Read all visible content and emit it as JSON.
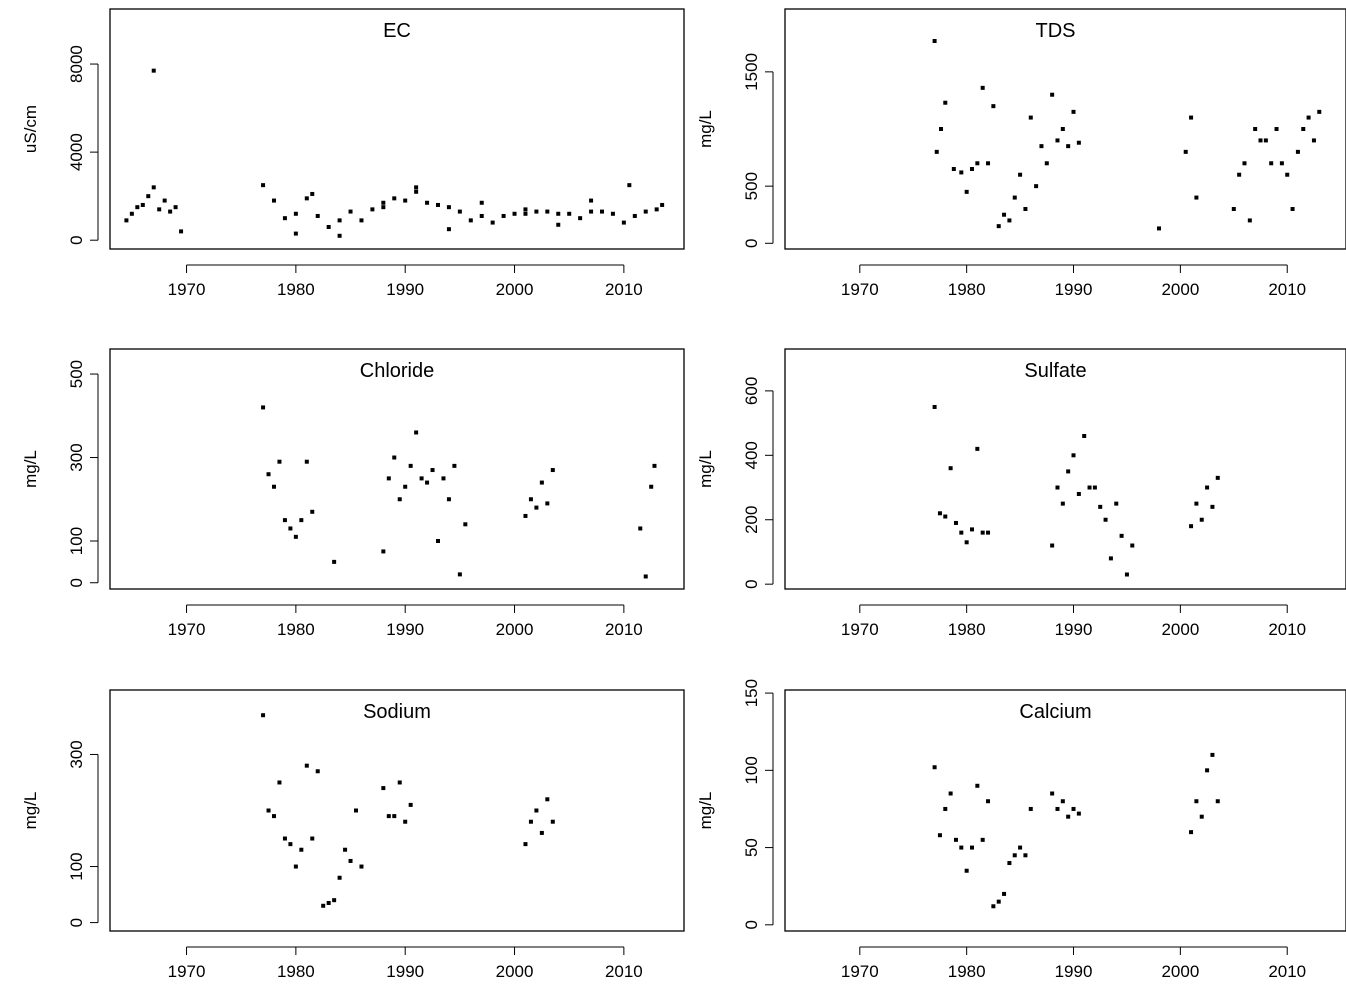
{
  "chart_data": [
    {
      "type": "scatter",
      "title": "EC",
      "ylabel": "uS/cm",
      "xlim": [
        1963,
        2015.5
      ],
      "ylim": [
        -400,
        10500
      ],
      "xticks": [
        "1970",
        "1980",
        "1990",
        "2000",
        "2010"
      ],
      "yticks": [
        "0",
        "4000",
        "8000"
      ],
      "x": [
        1964.5,
        1965,
        1965.5,
        1966,
        1966.5,
        1967,
        1967.5,
        1968,
        1968.5,
        1969,
        1969.5,
        1977,
        1978,
        1979,
        1980,
        1981,
        1982,
        1983,
        1984,
        1985,
        1986,
        1987,
        1988,
        1989,
        1990,
        1991,
        1992,
        1993,
        1994,
        1995,
        1996,
        1997,
        1998,
        1999,
        2000,
        2001,
        2002,
        2003,
        2004,
        2005,
        2006,
        2007,
        2008,
        2009,
        2010,
        2011,
        2012,
        2013,
        1967,
        1980,
        1981.5,
        1984,
        1988,
        1991,
        1994,
        1997,
        2001,
        2004,
        2007,
        2010.5,
        2013.5
      ],
      "y": [
        900,
        1200,
        1500,
        1600,
        2000,
        2400,
        1400,
        1800,
        1300,
        1500,
        400,
        2500,
        1800,
        1000,
        1200,
        1900,
        1100,
        600,
        900,
        1300,
        900,
        1400,
        1700,
        1900,
        1800,
        2200,
        1700,
        1600,
        1500,
        1300,
        900,
        1100,
        800,
        1100,
        1200,
        1200,
        1300,
        1300,
        1200,
        1200,
        1000,
        1300,
        1300,
        1200,
        800,
        1100,
        1300,
        1400,
        7700,
        300,
        2100,
        200,
        1500,
        2400,
        500,
        1700,
        1400,
        700,
        1800,
        2500,
        1600
      ]
    },
    {
      "type": "scatter",
      "title": "TDS",
      "ylabel": "mg/L",
      "xlim": [
        1963,
        2015.5
      ],
      "ylim": [
        -50,
        2050
      ],
      "xticks": [
        "1970",
        "1980",
        "1990",
        "2000",
        "2010"
      ],
      "yticks": [
        "0",
        "500",
        "1500"
      ],
      "x": [
        1977,
        1977.2,
        1977.6,
        1978,
        1978.8,
        1979.5,
        1980,
        1980.5,
        1981,
        1981.5,
        1982,
        1982.5,
        1983,
        1983.5,
        1984,
        1984.5,
        1985,
        1985.5,
        1986,
        1986.5,
        1987,
        1987.5,
        1988,
        1988.5,
        1989,
        1989.5,
        1990,
        1990.5,
        1998,
        2000.5,
        2001,
        2001.5,
        2005,
        2005.5,
        2006,
        2006.5,
        2007,
        2007.5,
        2008,
        2008.5,
        2009,
        2009.5,
        2010,
        2010.5,
        2011,
        2011.5,
        2012,
        2012.5,
        2013
      ],
      "y": [
        1770,
        800,
        1000,
        1230,
        650,
        620,
        450,
        650,
        700,
        1360,
        700,
        1200,
        150,
        250,
        200,
        400,
        600,
        300,
        1100,
        500,
        850,
        700,
        1300,
        900,
        1000,
        850,
        1150,
        880,
        130,
        800,
        1100,
        400,
        300,
        600,
        700,
        200,
        1000,
        900,
        900,
        700,
        1000,
        700,
        600,
        300,
        800,
        1000,
        1100,
        900,
        1150
      ]
    },
    {
      "type": "scatter",
      "title": "Chloride",
      "ylabel": "mg/L",
      "xlim": [
        1963,
        2015.5
      ],
      "ylim": [
        -15,
        560
      ],
      "xticks": [
        "1970",
        "1980",
        "1990",
        "2000",
        "2010"
      ],
      "yticks": [
        "0",
        "100",
        "300",
        "500"
      ],
      "x": [
        1977,
        1977.5,
        1978,
        1978.5,
        1979,
        1979.5,
        1980,
        1980.5,
        1981,
        1981.5,
        1983.5,
        1988,
        1988.5,
        1989,
        1989.5,
        1990,
        1990.5,
        1991,
        1991.5,
        1992,
        1992.5,
        1993,
        1993.5,
        1994,
        1994.5,
        1995,
        1995.5,
        2001,
        2001.5,
        2002,
        2002.5,
        2003,
        2003.5,
        2011.5,
        2012,
        2012.5,
        2012.8
      ],
      "y": [
        420,
        260,
        230,
        290,
        150,
        130,
        110,
        150,
        290,
        170,
        50,
        75,
        250,
        300,
        200,
        230,
        280,
        360,
        250,
        240,
        270,
        100,
        250,
        200,
        280,
        20,
        140,
        160,
        200,
        180,
        240,
        190,
        270,
        130,
        15,
        230,
        280
      ]
    },
    {
      "type": "scatter",
      "title": "Sulfate",
      "ylabel": "mg/L",
      "xlim": [
        1963,
        2015.5
      ],
      "ylim": [
        -15,
        730
      ],
      "xticks": [
        "1970",
        "1980",
        "1990",
        "2000",
        "2010"
      ],
      "yticks": [
        "0",
        "200",
        "400",
        "600"
      ],
      "x": [
        1977,
        1977.5,
        1978,
        1978.5,
        1979,
        1979.5,
        1980,
        1980.5,
        1981,
        1981.5,
        1982,
        1988,
        1988.5,
        1989,
        1989.5,
        1990,
        1990.5,
        1991,
        1991.5,
        1992,
        1992.5,
        1993,
        1993.5,
        1994,
        1994.5,
        1995,
        1995.5,
        2001,
        2001.5,
        2002,
        2002.5,
        2003,
        2003.5
      ],
      "y": [
        550,
        220,
        210,
        360,
        190,
        160,
        130,
        170,
        420,
        160,
        160,
        120,
        300,
        250,
        350,
        400,
        280,
        460,
        300,
        300,
        240,
        200,
        80,
        250,
        150,
        30,
        120,
        180,
        250,
        200,
        300,
        240,
        330
      ]
    },
    {
      "type": "scatter",
      "title": "Sodium",
      "ylabel": "mg/L",
      "xlim": [
        1963,
        2015.5
      ],
      "ylim": [
        -15,
        415
      ],
      "xticks": [
        "1970",
        "1980",
        "1990",
        "2000",
        "2010"
      ],
      "yticks": [
        "0",
        "100",
        "300"
      ],
      "x": [
        1977,
        1977.5,
        1978,
        1978.5,
        1979,
        1979.5,
        1980,
        1980.5,
        1981,
        1981.5,
        1982,
        1982.5,
        1983,
        1983.5,
        1984,
        1984.5,
        1985,
        1985.5,
        1986,
        1988,
        1988.5,
        1989,
        1989.5,
        1990,
        1990.5,
        2001,
        2001.5,
        2002,
        2002.5,
        2003,
        2003.5
      ],
      "y": [
        370,
        200,
        190,
        250,
        150,
        140,
        100,
        130,
        280,
        150,
        270,
        30,
        35,
        40,
        80,
        130,
        110,
        200,
        100,
        240,
        190,
        190,
        250,
        180,
        210,
        140,
        180,
        200,
        160,
        220,
        180
      ]
    },
    {
      "type": "scatter",
      "title": "Calcium",
      "ylabel": "mg/L",
      "xlim": [
        1963,
        2015.5
      ],
      "ylim": [
        -4,
        152
      ],
      "xticks": [
        "1970",
        "1980",
        "1990",
        "2000",
        "2010"
      ],
      "yticks": [
        "0",
        "50",
        "100",
        "150"
      ],
      "x": [
        1977,
        1977.5,
        1978,
        1978.5,
        1979,
        1979.5,
        1980,
        1980.5,
        1981,
        1981.5,
        1982,
        1982.5,
        1983,
        1983.5,
        1984,
        1984.5,
        1985,
        1985.5,
        1986,
        1988,
        1988.5,
        1989,
        1989.5,
        1990,
        1990.5,
        2001,
        2001.5,
        2002,
        2002.5,
        2003,
        2003.5
      ],
      "y": [
        102,
        58,
        75,
        85,
        55,
        50,
        35,
        50,
        90,
        55,
        80,
        12,
        15,
        20,
        40,
        45,
        50,
        45,
        75,
        85,
        75,
        80,
        70,
        75,
        72,
        60,
        80,
        70,
        100,
        110,
        80
      ]
    }
  ]
}
